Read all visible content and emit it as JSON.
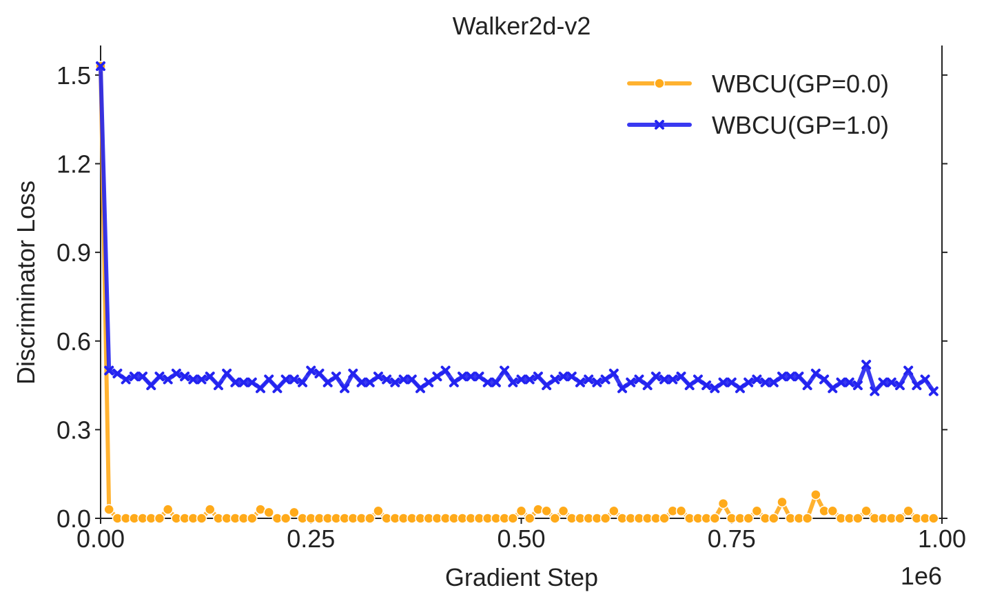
{
  "chart_data": {
    "type": "line",
    "title": "Walker2d-v2",
    "xlabel": "Gradient Step",
    "ylabel": "Discriminator Loss",
    "x_multiplier_label": "1e6",
    "xlim": [
      0,
      1000000
    ],
    "ylim": [
      0,
      1.6
    ],
    "x_ticks": [
      0,
      250000,
      500000,
      750000,
      1000000
    ],
    "x_tick_labels": [
      "0.00",
      "0.25",
      "0.50",
      "0.75",
      "1.00"
    ],
    "y_ticks": [
      0,
      0.3,
      0.6,
      0.9,
      1.2,
      1.5
    ],
    "y_tick_labels": [
      "0.0",
      "0.3",
      "0.6",
      "0.9",
      "1.2",
      "1.5"
    ],
    "grid": false,
    "legend_position": "top-right",
    "x": [
      0,
      10000,
      20000,
      30000,
      40000,
      50000,
      60000,
      70000,
      80000,
      90000,
      100000,
      110000,
      120000,
      130000,
      140000,
      150000,
      160000,
      170000,
      180000,
      190000,
      200000,
      210000,
      220000,
      230000,
      240000,
      250000,
      260000,
      270000,
      280000,
      290000,
      300000,
      310000,
      320000,
      330000,
      340000,
      350000,
      360000,
      370000,
      380000,
      390000,
      400000,
      410000,
      420000,
      430000,
      440000,
      450000,
      460000,
      470000,
      480000,
      490000,
      500000,
      510000,
      520000,
      530000,
      540000,
      550000,
      560000,
      570000,
      580000,
      590000,
      600000,
      610000,
      620000,
      630000,
      640000,
      650000,
      660000,
      670000,
      680000,
      690000,
      700000,
      710000,
      720000,
      730000,
      740000,
      750000,
      760000,
      770000,
      780000,
      790000,
      800000,
      810000,
      820000,
      830000,
      840000,
      850000,
      860000,
      870000,
      880000,
      890000,
      900000,
      910000,
      920000,
      930000,
      940000,
      950000,
      960000,
      970000,
      980000,
      990000
    ],
    "series": [
      {
        "name": "WBCU(GP=0.0)",
        "color": "#FFAA1A",
        "marker": "circle",
        "values": [
          1.53,
          0.03,
          0.0,
          0.0,
          0.0,
          0.0,
          0.0,
          0.0,
          0.03,
          0.0,
          0.0,
          0.0,
          0.0,
          0.03,
          0.0,
          0.0,
          0.0,
          0.0,
          0.0,
          0.03,
          0.02,
          0.0,
          0.0,
          0.02,
          0.0,
          0.0,
          0.0,
          0.0,
          0.0,
          0.0,
          0.0,
          0.0,
          0.0,
          0.025,
          0.0,
          0.0,
          0.0,
          0.0,
          0.0,
          0.0,
          0.0,
          0.0,
          0.0,
          0.0,
          0.0,
          0.0,
          0.0,
          0.0,
          0.0,
          0.0,
          0.025,
          0.0,
          0.03,
          0.025,
          0.0,
          0.025,
          0.0,
          0.0,
          0.0,
          0.0,
          0.0,
          0.025,
          0.0,
          0.0,
          0.0,
          0.0,
          0.0,
          0.0,
          0.025,
          0.025,
          0.0,
          0.0,
          0.0,
          0.0,
          0.05,
          0.0,
          0.0,
          0.0,
          0.025,
          0.0,
          0.0,
          0.055,
          0.0,
          0.0,
          0.0,
          0.08,
          0.025,
          0.025,
          0.0,
          0.0,
          0.0,
          0.025,
          0.0,
          0.0,
          0.0,
          0.0,
          0.025,
          0.0,
          0.0,
          0.0
        ]
      },
      {
        "name": "WBCU(GP=1.0)",
        "color": "#2323F0",
        "marker": "x",
        "values": [
          1.53,
          0.5,
          0.49,
          0.47,
          0.48,
          0.48,
          0.45,
          0.48,
          0.47,
          0.49,
          0.48,
          0.47,
          0.47,
          0.48,
          0.45,
          0.49,
          0.46,
          0.46,
          0.46,
          0.44,
          0.47,
          0.44,
          0.47,
          0.47,
          0.46,
          0.5,
          0.49,
          0.46,
          0.48,
          0.44,
          0.49,
          0.46,
          0.46,
          0.48,
          0.47,
          0.46,
          0.47,
          0.47,
          0.44,
          0.46,
          0.48,
          0.5,
          0.46,
          0.48,
          0.48,
          0.48,
          0.46,
          0.46,
          0.5,
          0.46,
          0.47,
          0.47,
          0.48,
          0.45,
          0.47,
          0.48,
          0.48,
          0.46,
          0.47,
          0.46,
          0.47,
          0.49,
          0.44,
          0.46,
          0.47,
          0.45,
          0.48,
          0.47,
          0.47,
          0.48,
          0.45,
          0.47,
          0.45,
          0.44,
          0.46,
          0.46,
          0.44,
          0.46,
          0.47,
          0.46,
          0.46,
          0.48,
          0.48,
          0.48,
          0.45,
          0.49,
          0.47,
          0.44,
          0.46,
          0.46,
          0.45,
          0.52,
          0.43,
          0.46,
          0.46,
          0.45,
          0.5,
          0.45,
          0.47,
          0.43
        ]
      }
    ]
  }
}
